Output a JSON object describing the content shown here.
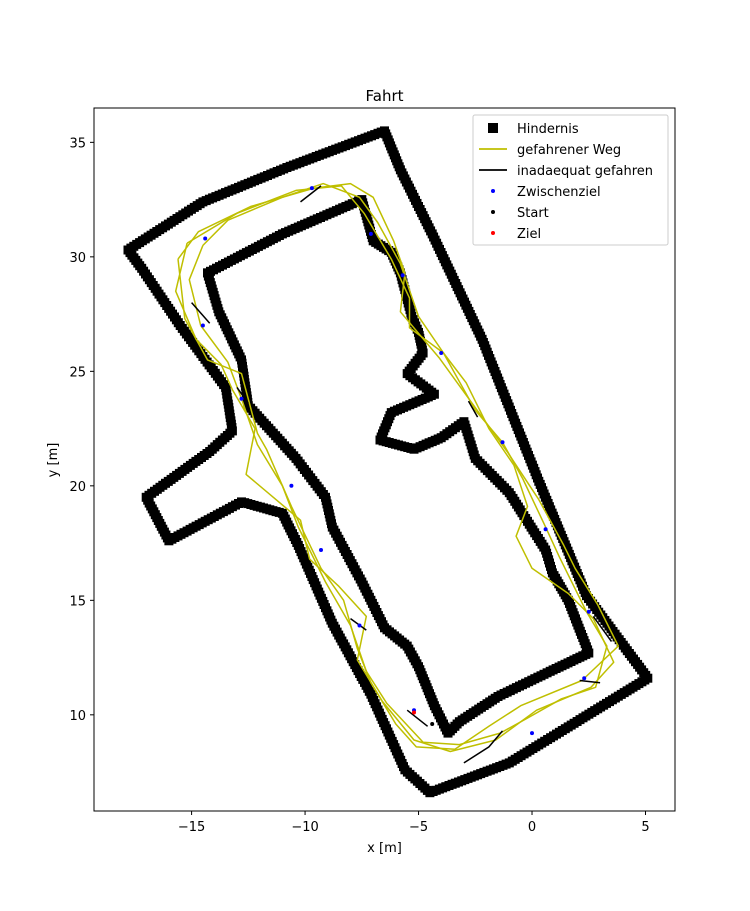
{
  "chart_data": {
    "type": "scatter",
    "title": "Fahrt",
    "xlabel": "x [m]",
    "ylabel": "y [m]",
    "xlim": [
      -19.3,
      6.3
    ],
    "ylim": [
      5.8,
      36.5
    ],
    "xticks": [
      -15,
      -10,
      -5,
      0,
      5
    ],
    "yticks": [
      10,
      15,
      20,
      25,
      30,
      35
    ],
    "grid": false,
    "legend_position": "top-right",
    "colors": {
      "obstacle": "#000000",
      "path": "#bfbf00",
      "inadequate": "#000000",
      "waypoint": "#0000ff",
      "start": "#000000",
      "goal": "#ff0000"
    },
    "legend": [
      {
        "key": "obstacle",
        "label": "Hindernis",
        "marker": "square"
      },
      {
        "key": "path",
        "label": "gefahrener Weg",
        "marker": "line"
      },
      {
        "key": "inadequate",
        "label": "inadaequat gefahren",
        "marker": "line"
      },
      {
        "key": "waypoint",
        "label": "Zwischenziel",
        "marker": "dot"
      },
      {
        "key": "start",
        "label": "Start",
        "marker": "dot"
      },
      {
        "key": "goal",
        "label": "Ziel",
        "marker": "dot"
      }
    ],
    "obstacles": [
      {
        "name": "outer-wall",
        "closed": true,
        "points": [
          [
            -17.8,
            30.3
          ],
          [
            -14.5,
            32.4
          ],
          [
            -10.8,
            33.9
          ],
          [
            -6.5,
            35.5
          ],
          [
            -5.8,
            33.8
          ],
          [
            -4.4,
            31.0
          ],
          [
            -2.2,
            26.4
          ],
          [
            0.3,
            20.2
          ],
          [
            2.4,
            15.2
          ],
          [
            5.1,
            11.6
          ],
          [
            -1.0,
            7.9
          ],
          [
            -4.5,
            6.6
          ],
          [
            -5.6,
            7.6
          ],
          [
            -7.1,
            10.9
          ],
          [
            -8.8,
            14.0
          ],
          [
            -10.3,
            17.4
          ],
          [
            -11.0,
            18.8
          ],
          [
            -12.8,
            19.3
          ],
          [
            -16.0,
            17.6
          ],
          [
            -17.0,
            19.5
          ],
          [
            -14.2,
            21.5
          ],
          [
            -13.2,
            22.4
          ],
          [
            -13.5,
            24.3
          ],
          [
            -15.5,
            27.0
          ],
          [
            -17.2,
            29.5
          ],
          [
            -17.8,
            30.3
          ]
        ]
      },
      {
        "name": "inner-wall",
        "closed": true,
        "points": [
          [
            -14.3,
            29.3
          ],
          [
            -11.0,
            31.0
          ],
          [
            -7.5,
            32.5
          ],
          [
            -7.0,
            30.7
          ],
          [
            -6.2,
            30.2
          ],
          [
            -5.8,
            29.3
          ],
          [
            -5.3,
            27.4
          ],
          [
            -5.0,
            26.7
          ],
          [
            -4.8,
            25.8
          ],
          [
            -5.5,
            24.9
          ],
          [
            -4.3,
            24.0
          ],
          [
            -6.2,
            23.2
          ],
          [
            -6.7,
            22.0
          ],
          [
            -5.2,
            21.6
          ],
          [
            -4.0,
            22.1
          ],
          [
            -3.0,
            22.8
          ],
          [
            -2.5,
            21.2
          ],
          [
            -1.0,
            19.7
          ],
          [
            0.6,
            17.2
          ],
          [
            0.9,
            16.2
          ],
          [
            1.6,
            15.0
          ],
          [
            2.5,
            12.7
          ],
          [
            0.8,
            11.9
          ],
          [
            -1.5,
            10.8
          ],
          [
            -3.2,
            9.7
          ],
          [
            -3.7,
            9.2
          ],
          [
            -4.3,
            10.4
          ],
          [
            -5.0,
            12.1
          ],
          [
            -5.5,
            13.0
          ],
          [
            -6.5,
            13.8
          ],
          [
            -7.5,
            15.8
          ],
          [
            -8.8,
            18.2
          ],
          [
            -9.1,
            19.5
          ],
          [
            -10.4,
            21.2
          ],
          [
            -11.4,
            22.3
          ],
          [
            -12.5,
            23.5
          ],
          [
            -12.8,
            25.5
          ],
          [
            -13.8,
            27.6
          ],
          [
            -14.3,
            29.3
          ]
        ]
      }
    ],
    "path": [
      {
        "name": "lap-1",
        "points": [
          [
            -14.5,
            30.5
          ],
          [
            -13.4,
            31.6
          ],
          [
            -11.0,
            32.6
          ],
          [
            -9.2,
            33.2
          ],
          [
            -7.6,
            32.6
          ],
          [
            -6.8,
            31.5
          ],
          [
            -5.8,
            29.7
          ],
          [
            -5.0,
            27.4
          ],
          [
            -3.9,
            25.8
          ],
          [
            -2.5,
            23.3
          ],
          [
            -1.3,
            21.9
          ],
          [
            -0.4,
            20.3
          ],
          [
            0.6,
            18.2
          ],
          [
            1.2,
            16.9
          ],
          [
            2.4,
            14.5
          ],
          [
            3.3,
            13.0
          ],
          [
            2.8,
            11.2
          ],
          [
            1.3,
            10.7
          ],
          [
            -0.3,
            9.8
          ],
          [
            -1.4,
            9.2
          ],
          [
            -3.2,
            8.7
          ],
          [
            -4.8,
            8.8
          ],
          [
            -6.4,
            10.5
          ],
          [
            -7.3,
            11.9
          ],
          [
            -8.0,
            13.9
          ],
          [
            -9.1,
            15.8
          ],
          [
            -10.3,
            18.2
          ],
          [
            -11.0,
            20.0
          ],
          [
            -12.1,
            21.8
          ],
          [
            -12.8,
            23.8
          ],
          [
            -13.4,
            25.4
          ],
          [
            -14.6,
            27.0
          ],
          [
            -15.1,
            29.0
          ],
          [
            -14.5,
            30.5
          ]
        ]
      },
      {
        "name": "lap-2",
        "points": [
          [
            -15.2,
            30.6
          ],
          [
            -13.0,
            31.9
          ],
          [
            -10.4,
            32.9
          ],
          [
            -8.4,
            33.1
          ],
          [
            -7.4,
            31.9
          ],
          [
            -6.2,
            29.9
          ],
          [
            -5.4,
            28.2
          ],
          [
            -5.4,
            26.9
          ],
          [
            -3.9,
            25.8
          ],
          [
            -2.9,
            24.5
          ],
          [
            -1.9,
            22.5
          ],
          [
            -0.8,
            20.9
          ],
          [
            -0.2,
            19.1
          ],
          [
            -0.7,
            17.8
          ],
          [
            0.0,
            16.4
          ],
          [
            1.6,
            15.3
          ],
          [
            2.7,
            14.2
          ],
          [
            3.6,
            12.3
          ],
          [
            2.6,
            11.2
          ],
          [
            0.2,
            10.2
          ],
          [
            -1.6,
            8.9
          ],
          [
            -3.6,
            8.4
          ],
          [
            -5.2,
            8.9
          ],
          [
            -6.6,
            10.6
          ],
          [
            -7.7,
            12.4
          ],
          [
            -7.3,
            14.3
          ],
          [
            -8.5,
            15.6
          ],
          [
            -9.8,
            16.8
          ],
          [
            -10.2,
            18.5
          ],
          [
            -12.6,
            20.5
          ],
          [
            -12.2,
            22.5
          ],
          [
            -13.2,
            24.2
          ],
          [
            -13.7,
            25.3
          ],
          [
            -14.8,
            26.4
          ],
          [
            -15.7,
            28.5
          ],
          [
            -15.2,
            30.6
          ]
        ]
      },
      {
        "name": "lap-3",
        "points": [
          [
            -15.6,
            29.9
          ],
          [
            -14.7,
            31.1
          ],
          [
            -12.4,
            32.2
          ],
          [
            -9.6,
            33.0
          ],
          [
            -8.0,
            33.2
          ],
          [
            -7.0,
            32.6
          ],
          [
            -6.1,
            30.7
          ],
          [
            -5.6,
            29.3
          ],
          [
            -5.8,
            27.6
          ],
          [
            -4.1,
            25.6
          ],
          [
            -3.0,
            24.1
          ],
          [
            -2.2,
            23.0
          ],
          [
            -1.1,
            21.5
          ],
          [
            0.3,
            19.4
          ],
          [
            1.4,
            17.4
          ],
          [
            1.9,
            16.4
          ],
          [
            2.9,
            14.8
          ],
          [
            3.8,
            13.0
          ],
          [
            2.2,
            11.5
          ],
          [
            -0.5,
            10.4
          ],
          [
            -1.9,
            9.5
          ],
          [
            -3.4,
            8.5
          ],
          [
            -5.1,
            8.6
          ],
          [
            -6.0,
            9.6
          ],
          [
            -7.1,
            11.4
          ],
          [
            -7.7,
            12.9
          ],
          [
            -8.3,
            15.0
          ],
          [
            -9.3,
            16.4
          ],
          [
            -10.6,
            19.1
          ],
          [
            -11.7,
            21.6
          ],
          [
            -12.1,
            22.3
          ],
          [
            -12.8,
            24.9
          ],
          [
            -14.3,
            25.5
          ],
          [
            -15.3,
            27.3
          ],
          [
            -15.6,
            29.9
          ]
        ]
      }
    ],
    "inadequate": [
      {
        "points": [
          [
            -10.2,
            32.4
          ],
          [
            -9.3,
            33.1
          ]
        ]
      },
      {
        "points": [
          [
            -15.0,
            28.0
          ],
          [
            -14.2,
            27.1
          ]
        ]
      },
      {
        "points": [
          [
            -13.0,
            24.3
          ],
          [
            -12.5,
            23.6
          ]
        ]
      },
      {
        "points": [
          [
            -8.0,
            14.2
          ],
          [
            -7.3,
            13.7
          ]
        ]
      },
      {
        "points": [
          [
            -5.5,
            10.2
          ],
          [
            -4.6,
            9.5
          ]
        ]
      },
      {
        "points": [
          [
            -3.0,
            7.9
          ],
          [
            -1.9,
            8.6
          ],
          [
            -1.3,
            9.3
          ]
        ]
      },
      {
        "points": [
          [
            2.1,
            11.5
          ],
          [
            3.0,
            11.4
          ]
        ]
      },
      {
        "points": [
          [
            2.7,
            14.3
          ],
          [
            3.5,
            13.2
          ]
        ]
      },
      {
        "points": [
          [
            -2.8,
            23.7
          ],
          [
            -2.4,
            23.0
          ]
        ]
      }
    ],
    "waypoints": [
      [
        -14.4,
        30.8
      ],
      [
        -9.7,
        33.0
      ],
      [
        -7.1,
        31.0
      ],
      [
        -5.7,
        29.2
      ],
      [
        -14.5,
        27.0
      ],
      [
        -12.8,
        23.8
      ],
      [
        -4.0,
        25.8
      ],
      [
        -1.3,
        21.9
      ],
      [
        -10.6,
        20.0
      ],
      [
        0.6,
        18.1
      ],
      [
        -9.3,
        17.2
      ],
      [
        2.5,
        14.5
      ],
      [
        -7.6,
        13.9
      ],
      [
        2.3,
        11.6
      ],
      [
        0.0,
        9.2
      ],
      [
        -5.2,
        10.2
      ]
    ],
    "start": [
      [
        -4.4,
        9.6
      ]
    ],
    "goal": [
      [
        -5.2,
        10.1
      ]
    ]
  }
}
